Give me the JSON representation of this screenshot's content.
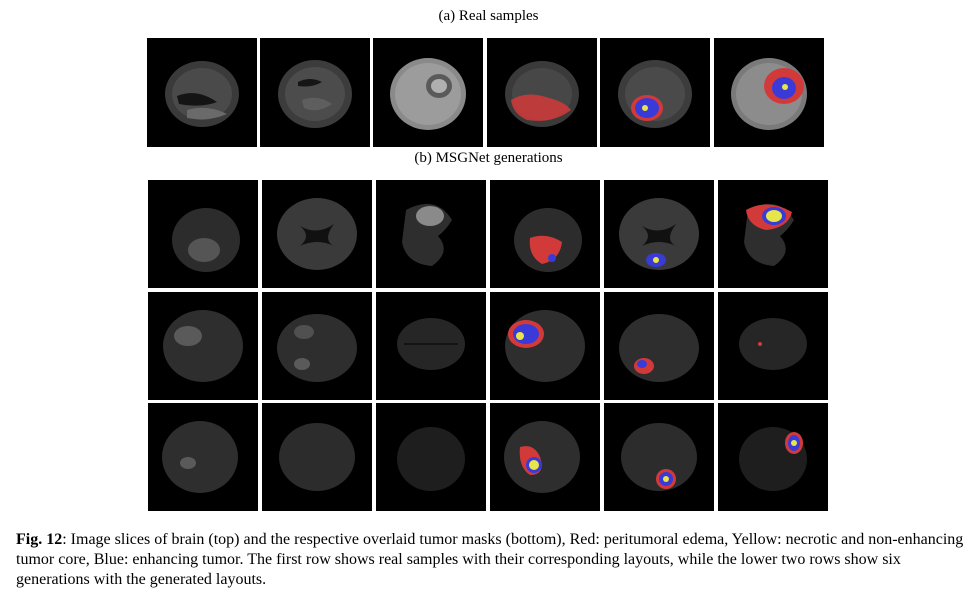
{
  "figure": {
    "panel_a_title": "(a) Real samples",
    "panel_b_title": "(b) MSGNet generations",
    "caption_label": "Fig. 12",
    "caption_text": ": Image slices of brain (top) and the respective overlaid tumor masks (bottom), Red: peritumoral edema, Yellow: necrotic and non-enhancing tumor core, Blue: enhancing tumor. The first row shows real samples with their corresponding layouts, while the lower two rows show six generations with the generated layouts."
  },
  "colors": {
    "background": "#000000",
    "edema": "#d23a3a",
    "necrotic_core": "#e6e64a",
    "enhancing": "#3a3ad8"
  }
}
